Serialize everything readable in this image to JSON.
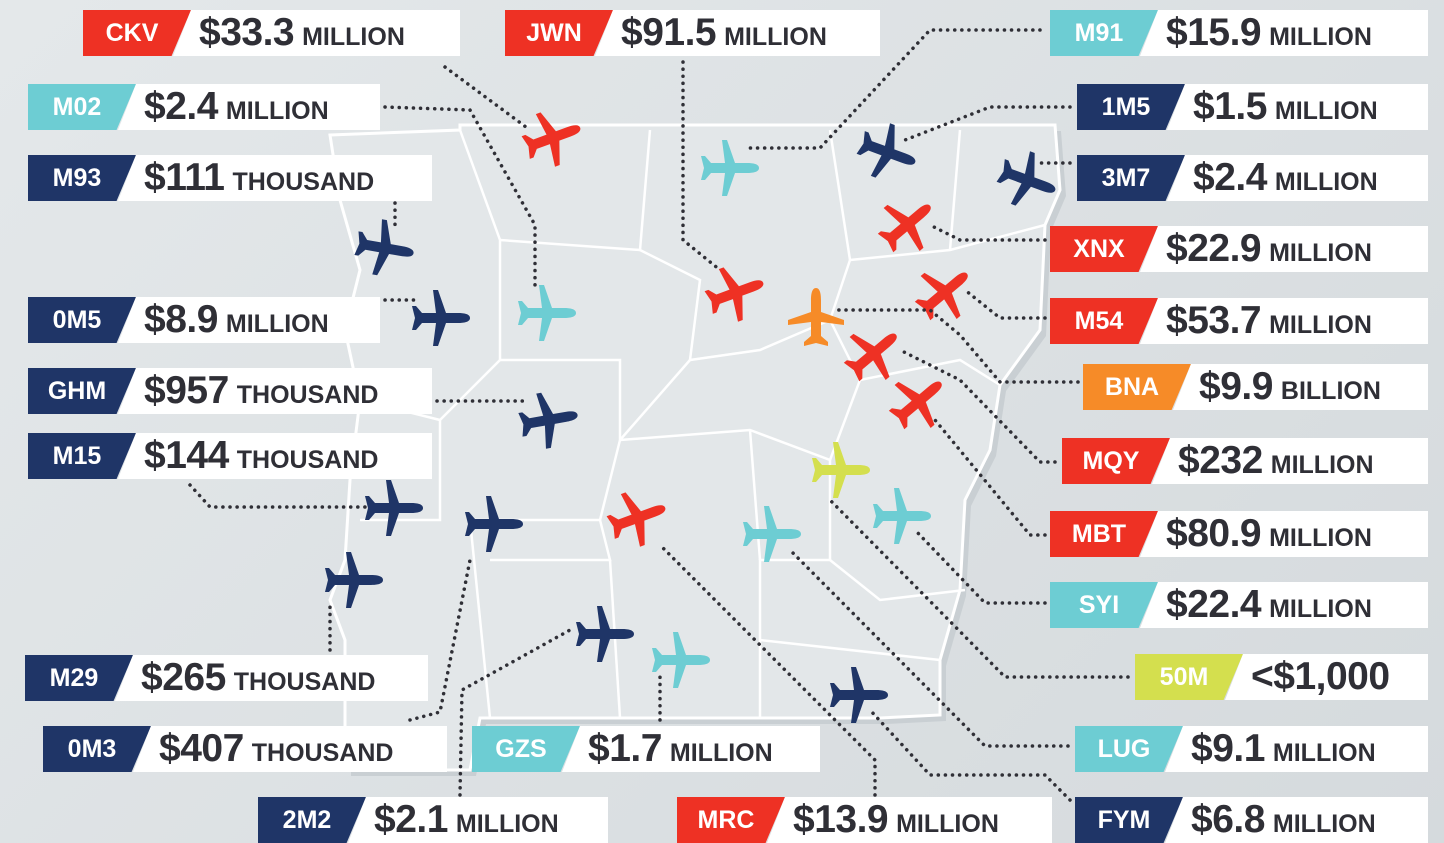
{
  "airports": [
    {
      "code": "CKV",
      "amount": "$33.3",
      "unit": "MILLION",
      "color": "#ee3124"
    },
    {
      "code": "M02",
      "amount": "$2.4",
      "unit": "MILLION",
      "color": "#6dcdd3"
    },
    {
      "code": "M93",
      "amount": "$111",
      "unit": "THOUSAND",
      "color": "#1f3567"
    },
    {
      "code": "0M5",
      "amount": "$8.9",
      "unit": "MILLION",
      "color": "#1f3567"
    },
    {
      "code": "GHM",
      "amount": "$957",
      "unit": "THOUSAND",
      "color": "#1f3567"
    },
    {
      "code": "M15",
      "amount": "$144",
      "unit": "THOUSAND",
      "color": "#1f3567"
    },
    {
      "code": "M29",
      "amount": "$265",
      "unit": "THOUSAND",
      "color": "#1f3567"
    },
    {
      "code": "0M3",
      "amount": "$407",
      "unit": "THOUSAND",
      "color": "#1f3567"
    },
    {
      "code": "2M2",
      "amount": "$2.1",
      "unit": "MILLION",
      "color": "#1f3567"
    },
    {
      "code": "JWN",
      "amount": "$91.5",
      "unit": "MILLION",
      "color": "#ee3124"
    },
    {
      "code": "GZS",
      "amount": "$1.7",
      "unit": "MILLION",
      "color": "#6dcdd3"
    },
    {
      "code": "MRC",
      "amount": "$13.9",
      "unit": "MILLION",
      "color": "#ee3124"
    },
    {
      "code": "M91",
      "amount": "$15.9",
      "unit": "MILLION",
      "color": "#6dcdd3"
    },
    {
      "code": "1M5",
      "amount": "$1.5",
      "unit": "MILLION",
      "color": "#1f3567"
    },
    {
      "code": "3M7",
      "amount": "$2.4",
      "unit": "MILLION",
      "color": "#1f3567"
    },
    {
      "code": "XNX",
      "amount": "$22.9",
      "unit": "MILLION",
      "color": "#ee3124"
    },
    {
      "code": "M54",
      "amount": "$53.7",
      "unit": "MILLION",
      "color": "#ee3124"
    },
    {
      "code": "BNA",
      "amount": "$9.9",
      "unit": "BILLION",
      "color": "#f68b28"
    },
    {
      "code": "MQY",
      "amount": "$232",
      "unit": "MILLION",
      "color": "#ee3124"
    },
    {
      "code": "MBT",
      "amount": "$80.9",
      "unit": "MILLION",
      "color": "#ee3124"
    },
    {
      "code": "SYI",
      "amount": "$22.4",
      "unit": "MILLION",
      "color": "#6dcdd3"
    },
    {
      "code": "50M",
      "amount": "<$1,000",
      "color": "#d4df4e"
    },
    {
      "code": "LUG",
      "amount": "$9.1",
      "unit": "MILLION",
      "color": "#6dcdd3"
    },
    {
      "code": "FYM",
      "amount": "$6.8",
      "unit": "MILLION",
      "color": "#1f3567"
    }
  ]
}
